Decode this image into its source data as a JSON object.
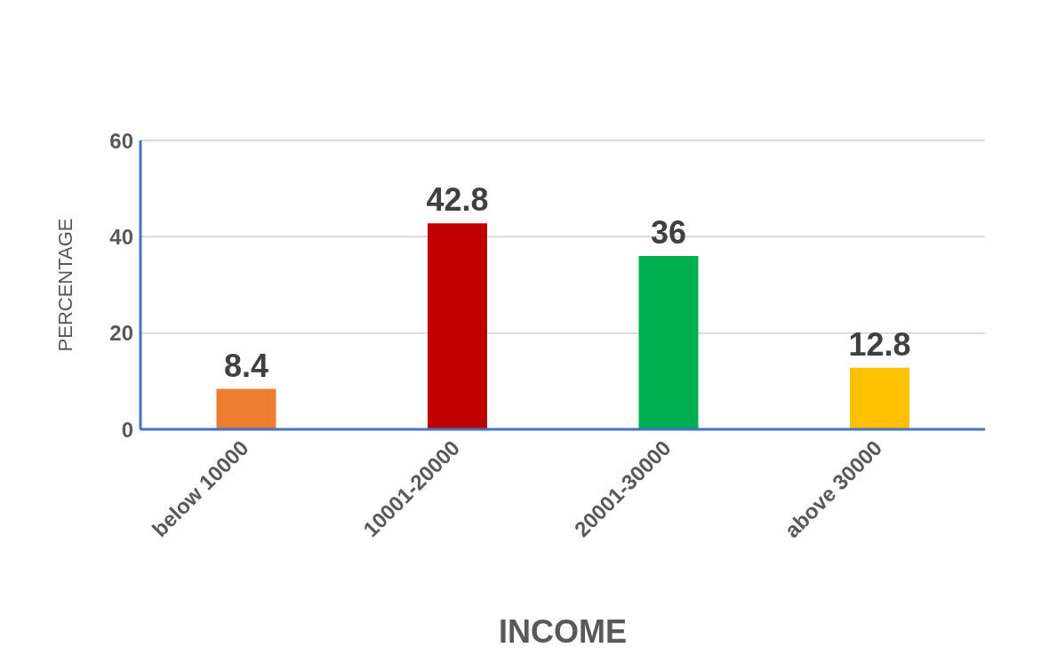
{
  "chart_data": {
    "type": "bar",
    "xlabel": "INCOME",
    "ylabel": "PERCENTAGE",
    "categories": [
      "below 10000",
      "10001-20000",
      "20001-30000",
      "above 30000"
    ],
    "values": [
      8.4,
      42.8,
      36,
      12.8
    ],
    "colors": [
      "#ed7d31",
      "#c00000",
      "#00b050",
      "#ffc000"
    ],
    "ylim": [
      0,
      60
    ],
    "yticks": [
      0,
      20,
      40,
      60
    ],
    "grid": "y",
    "data_labels": true
  }
}
